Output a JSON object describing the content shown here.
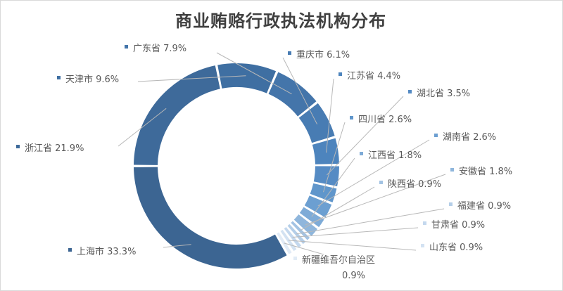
{
  "chart_data": {
    "type": "donut",
    "title": "商业贿赂行政执法机构分布",
    "unit": "%",
    "legend": "none",
    "slices": [
      {
        "label": "上海市",
        "value": 33.3,
        "color": "#3c6592"
      },
      {
        "label": "浙江省",
        "value": 21.9,
        "color": "#3e6a9a"
      },
      {
        "label": "天津市",
        "value": 9.6,
        "color": "#3f6fa2"
      },
      {
        "label": "广东省",
        "value": 7.9,
        "color": "#4475aa"
      },
      {
        "label": "重庆市",
        "value": 6.1,
        "color": "#487cb3"
      },
      {
        "label": "江苏省",
        "value": 4.4,
        "color": "#4d84bd"
      },
      {
        "label": "湖北省",
        "value": 3.5,
        "color": "#558bc4"
      },
      {
        "label": "四川省",
        "value": 2.6,
        "color": "#6096cb"
      },
      {
        "label": "湖南省",
        "value": 2.6,
        "color": "#6c9fd1"
      },
      {
        "label": "江西省",
        "value": 1.8,
        "color": "#7eabd7"
      },
      {
        "label": "安徽省",
        "value": 1.8,
        "color": "#8fb6dc"
      },
      {
        "label": "陕西省",
        "value": 0.9,
        "color": "#a3c3e3"
      },
      {
        "label": "福建省",
        "value": 0.9,
        "color": "#b4cee8"
      },
      {
        "label": "甘肃省",
        "value": 0.9,
        "color": "#c4d8ee"
      },
      {
        "label": "山东省",
        "value": 0.9,
        "color": "#d3e2f2"
      },
      {
        "label": "新疆维吾尔自治区",
        "value": 0.9,
        "color": "#e1ebf6"
      }
    ]
  }
}
